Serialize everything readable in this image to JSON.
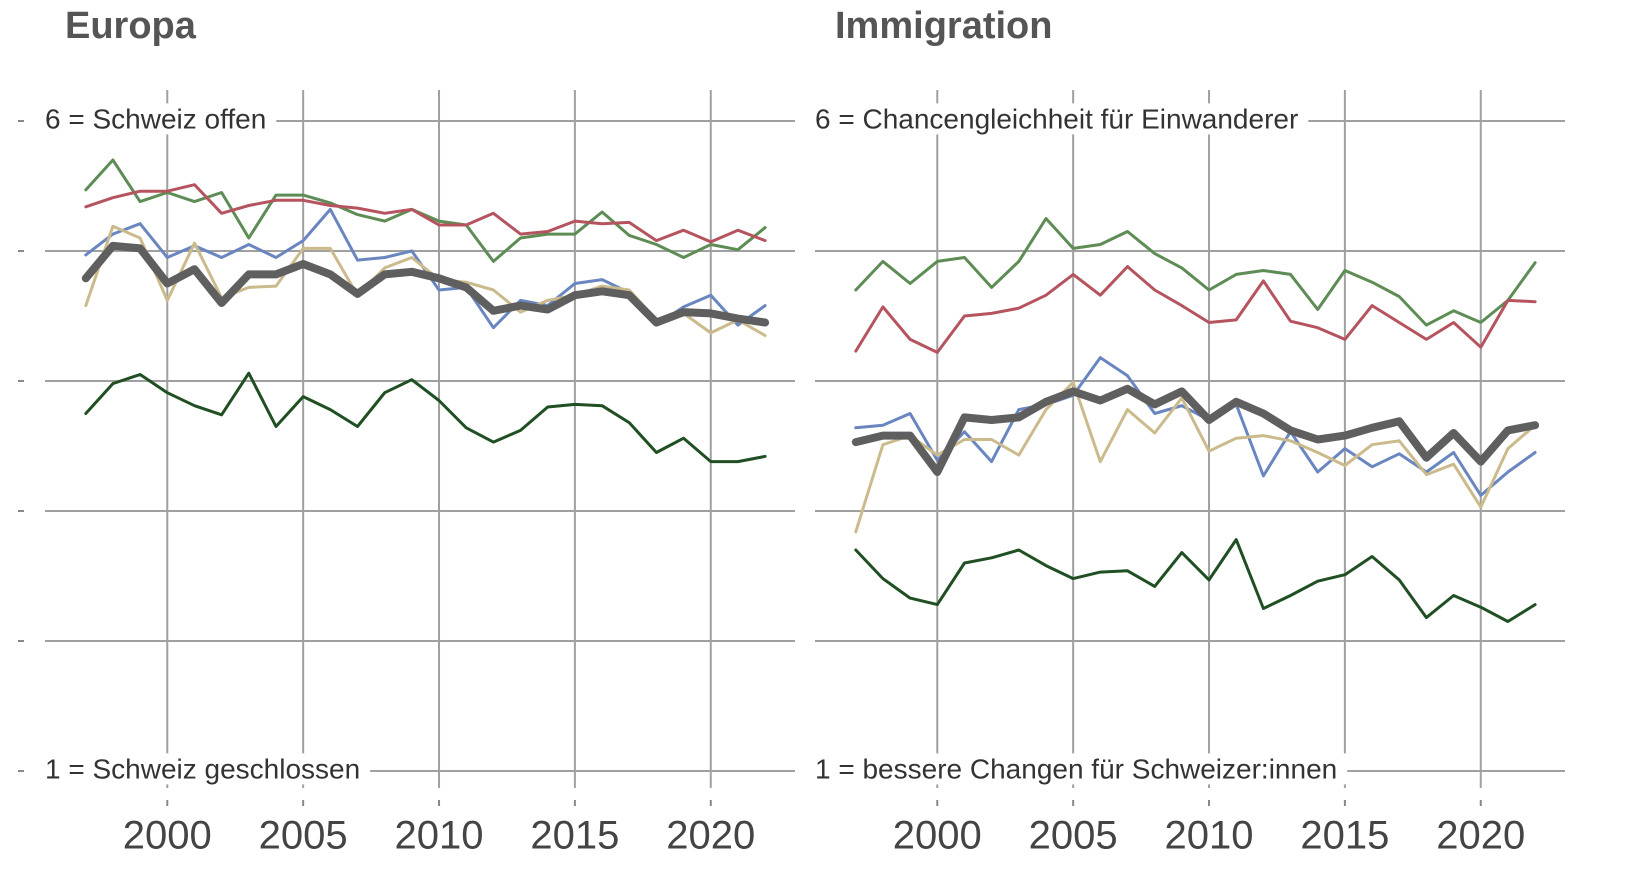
{
  "chart_data": [
    {
      "type": "line",
      "title": "Europa",
      "top_label": "6 = Schweiz offen",
      "bottom_label": "1 = Schweiz geschlossen",
      "x": [
        1997,
        1998,
        1999,
        2000,
        2001,
        2002,
        2003,
        2004,
        2005,
        2006,
        2007,
        2008,
        2009,
        2010,
        2011,
        2012,
        2013,
        2014,
        2015,
        2016,
        2017,
        2018,
        2019,
        2020,
        2021,
        2022
      ],
      "xlim": [
        1995.5,
        2023.1
      ],
      "xticks": [
        2000,
        2005,
        2010,
        2015,
        2020
      ],
      "ylim": [
        1,
        6
      ],
      "yticks": [
        1,
        2,
        3,
        4,
        5,
        6
      ],
      "grid": true,
      "series": [
        {
          "color": "#5e8c55",
          "values": [
            5.47,
            5.7,
            5.38,
            5.45,
            5.38,
            5.45,
            5.1,
            5.43,
            5.43,
            5.37,
            5.28,
            5.23,
            5.32,
            5.23,
            5.2,
            4.92,
            5.1,
            5.13,
            5.13,
            5.3,
            5.12,
            5.05,
            4.95,
            5.05,
            5.01,
            5.18
          ]
        },
        {
          "color": "#b5545e",
          "values": [
            5.34,
            5.41,
            5.46,
            5.46,
            5.51,
            5.29,
            5.35,
            5.39,
            5.39,
            5.35,
            5.33,
            5.29,
            5.32,
            5.2,
            5.2,
            5.29,
            5.13,
            5.15,
            5.23,
            5.21,
            5.22,
            5.08,
            5.16,
            5.07,
            5.16,
            5.08
          ]
        },
        {
          "color": "#6a86c0",
          "values": [
            4.97,
            5.13,
            5.21,
            4.95,
            5.04,
            4.95,
            5.05,
            4.95,
            5.08,
            5.32,
            4.93,
            4.95,
            5.0,
            4.7,
            4.72,
            4.41,
            4.62,
            4.58,
            4.75,
            4.78,
            4.68,
            4.43,
            4.57,
            4.66,
            4.43,
            4.58
          ]
        },
        {
          "color": "#cbbb8c",
          "values": [
            4.58,
            5.19,
            5.1,
            4.62,
            5.06,
            4.64,
            4.72,
            4.73,
            5.02,
            5.02,
            4.66,
            4.87,
            4.95,
            4.78,
            4.76,
            4.7,
            4.53,
            4.62,
            4.66,
            4.73,
            4.7,
            4.47,
            4.52,
            4.37,
            4.47,
            4.35
          ]
        },
        {
          "color": "#1f4f22",
          "values": [
            3.75,
            3.98,
            4.05,
            3.91,
            3.81,
            3.74,
            4.06,
            3.65,
            3.88,
            3.78,
            3.65,
            3.91,
            4.01,
            3.85,
            3.64,
            3.53,
            3.62,
            3.8,
            3.82,
            3.81,
            3.68,
            3.45,
            3.56,
            3.38,
            3.38,
            3.42
          ]
        },
        {
          "color": "#5f5f5f",
          "width": 8,
          "values": [
            4.79,
            5.04,
            5.02,
            4.75,
            4.86,
            4.6,
            4.82,
            4.82,
            4.9,
            4.82,
            4.67,
            4.82,
            4.84,
            4.79,
            4.72,
            4.54,
            4.58,
            4.55,
            4.66,
            4.69,
            4.66,
            4.45,
            4.53,
            4.52,
            4.48,
            4.45
          ]
        }
      ]
    },
    {
      "type": "line",
      "title": "Immigration",
      "top_label": "6 = Chancengleichheit für Einwanderer",
      "bottom_label": "1 = bessere Changen für Schweizer:innen",
      "x": [
        1997,
        1998,
        1999,
        2000,
        2001,
        2002,
        2003,
        2004,
        2005,
        2006,
        2007,
        2008,
        2009,
        2010,
        2011,
        2012,
        2013,
        2014,
        2015,
        2016,
        2017,
        2018,
        2019,
        2020,
        2021,
        2022
      ],
      "xlim": [
        1995.5,
        2023.1
      ],
      "xticks": [
        2000,
        2005,
        2010,
        2015,
        2020
      ],
      "ylim": [
        1,
        6
      ],
      "yticks": [
        1,
        2,
        3,
        4,
        5,
        6
      ],
      "grid": true,
      "series": [
        {
          "color": "#5e8c55",
          "values": [
            4.7,
            4.92,
            4.75,
            4.92,
            4.95,
            4.72,
            4.92,
            5.25,
            5.02,
            5.05,
            5.15,
            4.98,
            4.87,
            4.7,
            4.82,
            4.85,
            4.82,
            4.55,
            4.85,
            4.76,
            4.65,
            4.43,
            4.54,
            4.45,
            4.62,
            4.91
          ]
        },
        {
          "color": "#b5545e",
          "values": [
            4.23,
            4.57,
            4.32,
            4.22,
            4.5,
            4.52,
            4.56,
            4.66,
            4.82,
            4.66,
            4.88,
            4.7,
            4.58,
            4.45,
            4.47,
            4.77,
            4.46,
            4.41,
            4.32,
            4.58,
            4.45,
            4.32,
            4.45,
            4.26,
            4.62,
            4.61
          ]
        },
        {
          "color": "#6a86c0",
          "values": [
            3.64,
            3.66,
            3.75,
            3.39,
            3.61,
            3.38,
            3.78,
            3.82,
            3.89,
            4.18,
            4.04,
            3.75,
            3.81,
            3.7,
            3.82,
            3.27,
            3.61,
            3.3,
            3.48,
            3.34,
            3.44,
            3.3,
            3.45,
            3.12,
            3.3,
            3.45
          ]
        },
        {
          "color": "#cbbb8c",
          "values": [
            2.84,
            3.51,
            3.58,
            3.43,
            3.55,
            3.55,
            3.43,
            3.78,
            3.99,
            3.38,
            3.78,
            3.6,
            3.87,
            3.46,
            3.56,
            3.58,
            3.54,
            3.45,
            3.35,
            3.51,
            3.54,
            3.28,
            3.36,
            3.03,
            3.48,
            3.66
          ]
        },
        {
          "color": "#1f4f22",
          "values": [
            2.7,
            2.48,
            2.33,
            2.28,
            2.6,
            2.64,
            2.7,
            2.58,
            2.48,
            2.53,
            2.54,
            2.42,
            2.68,
            2.47,
            2.78,
            2.25,
            2.35,
            2.46,
            2.51,
            2.65,
            2.47,
            2.18,
            2.35,
            2.26,
            2.15,
            2.28
          ]
        },
        {
          "color": "#5f5f5f",
          "width": 8,
          "values": [
            3.53,
            3.58,
            3.58,
            3.3,
            3.72,
            3.7,
            3.72,
            3.84,
            3.92,
            3.85,
            3.94,
            3.82,
            3.92,
            3.7,
            3.84,
            3.75,
            3.62,
            3.55,
            3.58,
            3.64,
            3.69,
            3.41,
            3.6,
            3.38,
            3.62,
            3.66
          ]
        }
      ]
    }
  ]
}
